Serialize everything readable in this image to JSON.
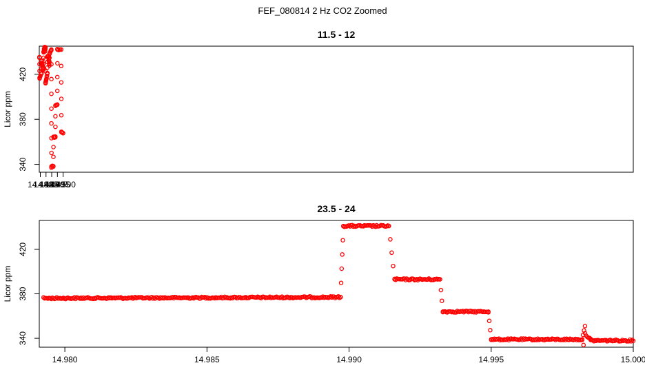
{
  "figure_title": "FEF_080814  2 Hz CO2 Zoomed",
  "colors": {
    "points": "#ff0000",
    "axes": "#000000",
    "background": "#ffffff"
  },
  "chart_data": [
    {
      "type": "scatter",
      "title": "11.5 - 12",
      "xlabel": "",
      "ylabel": "Licor ppm",
      "xlim": [
        14.4791,
        15.0
      ],
      "ylim": [
        333,
        445
      ],
      "xticks": [
        14.48,
        14.485,
        14.49,
        14.495,
        14.5
      ],
      "xtick_labels": [
        "14.480",
        "14.485",
        "14.490",
        "14.495",
        "14.500"
      ],
      "yticks": [
        340,
        380,
        420
      ],
      "ytick_labels": [
        "340",
        "380",
        "420"
      ],
      "grid": false,
      "legend": "none",
      "series": [
        {
          "marker": "open-circle",
          "segments": [
            {
              "x": [
                14.47915,
                14.4793
              ],
              "y": [
                435,
                435
              ]
            },
            {
              "x": [
                14.4793,
                14.4794
              ],
              "y": [
                435,
                417
              ],
              "sparse": true
            },
            {
              "x": [
                14.4794,
                14.481
              ],
              "y": [
                417,
                421
              ]
            },
            {
              "x": [
                14.481,
                14.4811
              ],
              "y": [
                421,
                432
              ],
              "sparse": true
            },
            {
              "x": [
                14.4811,
                14.4827
              ],
              "y": [
                432,
                424
              ]
            },
            {
              "x": [
                14.4827,
                14.4829
              ],
              "y": [
                424,
                440
              ],
              "sparse": true
            },
            {
              "x": [
                14.4829,
                14.4833
              ],
              "y": [
                440,
                442
              ]
            },
            {
              "x": [
                14.4833,
                14.4838
              ],
              "y": [
                442,
                444
              ]
            },
            {
              "x": [
                14.4838,
                14.4842
              ],
              "y": [
                444,
                441
              ]
            },
            {
              "x": [
                14.4842,
                14.4845
              ],
              "y": [
                441,
                444
              ]
            },
            {
              "x": [
                14.4845,
                14.4846
              ],
              "y": [
                444,
                412
              ],
              "sparse": true
            },
            {
              "x": [
                14.4846,
                14.4862
              ],
              "y": [
                412,
                421
              ]
            },
            {
              "x": [
                14.4862,
                14.4863
              ],
              "y": [
                421,
                436
              ],
              "sparse": true
            },
            {
              "x": [
                14.4863,
                14.4873
              ],
              "y": [
                436,
                436
              ]
            },
            {
              "x": [
                14.4873,
                14.4879
              ],
              "y": [
                436,
                428
              ]
            },
            {
              "x": [
                14.4879,
                14.4881
              ],
              "y": [
                428,
                438
              ],
              "sparse": true
            },
            {
              "x": [
                14.4881,
                14.4897
              ],
              "y": [
                438,
                442
              ]
            },
            {
              "x": [
                14.4897,
                14.4898
              ],
              "y": [
                442,
                337
              ],
              "sparse": true
            },
            {
              "x": [
                14.4898,
                14.4914
              ],
              "y": [
                338,
                338
              ]
            },
            {
              "x": [
                14.4914,
                14.4916
              ],
              "y": [
                338,
                364
              ],
              "sparse": true
            },
            {
              "x": [
                14.4916,
                14.4932
              ],
              "y": [
                364,
                364
              ]
            },
            {
              "x": [
                14.4932,
                14.4933
              ],
              "y": [
                364,
                392
              ],
              "sparse": true
            },
            {
              "x": [
                14.4933,
                14.4949
              ],
              "y": [
                392,
                393
              ]
            },
            {
              "x": [
                14.4949,
                14.495
              ],
              "y": [
                393,
                442
              ],
              "sparse": true
            },
            {
              "x": [
                14.495,
                14.4983
              ],
              "y": [
                442,
                442
              ]
            },
            {
              "x": [
                14.4983,
                14.4985
              ],
              "y": [
                442,
                369
              ],
              "sparse": true
            },
            {
              "x": [
                14.4985,
                14.5
              ],
              "y": [
                369,
                368
              ]
            }
          ]
        }
      ]
    },
    {
      "type": "scatter",
      "title": "23.5 - 24",
      "xlabel": "",
      "ylabel": "Licor ppm",
      "xlim": [
        14.9791,
        15.0
      ],
      "ylim": [
        332,
        446
      ],
      "xticks": [
        14.98,
        14.985,
        14.99,
        14.995,
        15.0
      ],
      "xtick_labels": [
        "14.980",
        "14.985",
        "14.990",
        "14.995",
        "15.000"
      ],
      "yticks": [
        340,
        380,
        420
      ],
      "ytick_labels": [
        "340",
        "380",
        "420"
      ],
      "grid": false,
      "legend": "none",
      "series": [
        {
          "marker": "open-circle",
          "segments": [
            {
              "x": [
                14.97925,
                14.9897
              ],
              "y": [
                376,
                377
              ]
            },
            {
              "x": [
                14.9897,
                14.9898
              ],
              "y": [
                377,
                441
              ],
              "sparse": true
            },
            {
              "x": [
                14.9898,
                14.9914
              ],
              "y": [
                441,
                441
              ]
            },
            {
              "x": [
                14.9914,
                14.9916
              ],
              "y": [
                441,
                393
              ],
              "sparse": true
            },
            {
              "x": [
                14.9916,
                14.9932
              ],
              "y": [
                393,
                393
              ]
            },
            {
              "x": [
                14.9932,
                14.9933
              ],
              "y": [
                393,
                364
              ],
              "sparse": true
            },
            {
              "x": [
                14.9933,
                14.9949
              ],
              "y": [
                364,
                364
              ]
            },
            {
              "x": [
                14.9949,
                14.995
              ],
              "y": [
                364,
                339
              ],
              "sparse": true
            },
            {
              "x": [
                14.995,
                14.9982
              ],
              "y": [
                339,
                339
              ]
            },
            {
              "x": [
                14.9982,
                14.9983
              ],
              "y": [
                339,
                351
              ],
              "sparse": true
            },
            {
              "x": [
                14.9983,
                14.9985
              ],
              "y": [
                344,
                339
              ]
            },
            {
              "x": [
                14.9985,
                15.0
              ],
              "y": [
                338,
                338
              ]
            }
          ],
          "outliers": [
            {
              "x": 14.99825,
              "y": 334
            }
          ]
        }
      ]
    }
  ]
}
